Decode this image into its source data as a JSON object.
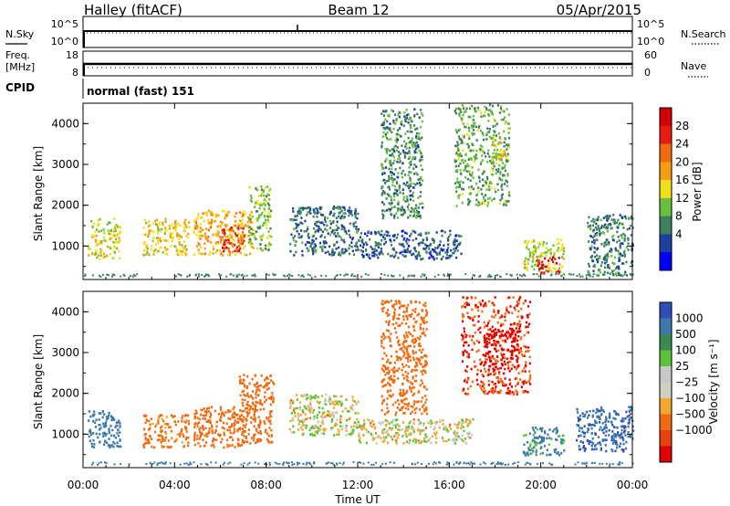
{
  "header": {
    "station": "Halley (fitACF)",
    "beam": "Beam 12",
    "date": "05/Apr/2015"
  },
  "top_panels": {
    "nsky": {
      "label": "N.Sky",
      "ticks": [
        "10^5",
        "10^0"
      ],
      "right_label": "N.Search",
      "right_ticks": [
        "10^5",
        "10^0"
      ]
    },
    "freq": {
      "label_line1": "Freq.",
      "label_line2": "[MHz]",
      "ticks": [
        "18",
        "8"
      ],
      "right_label": "Nave",
      "right_ticks": [
        "60",
        "0"
      ]
    },
    "cpid": {
      "label": "CPID",
      "text": "normal (fast) 151"
    }
  },
  "colors": {
    "power_scale": [
      "#0000ff",
      "#1f3f9f",
      "#3d8060",
      "#6bbf40",
      "#f2dc1e",
      "#f59c12",
      "#f26a10",
      "#e81c10",
      "#d40000"
    ],
    "velocity_scale": [
      "#2f4fb8",
      "#3c78a8",
      "#3a8a50",
      "#5cc23c",
      "#c8c8c8",
      "#cfcfc4",
      "#f2a830",
      "#f06a10",
      "#e84010",
      "#e00000"
    ]
  },
  "chart_data": [
    {
      "type": "heatmap",
      "title": "",
      "xlabel": "Time UT",
      "ylabel": "Slant Range [km]",
      "x_ticks": [
        "00:00",
        "04:00",
        "08:00",
        "12:00",
        "16:00",
        "20:00",
        "00:00"
      ],
      "y_ticks": [
        "1000",
        "2000",
        "3000",
        "4000"
      ],
      "xlim": [
        0,
        24
      ],
      "ylim": [
        180,
        4500
      ],
      "colorbar": {
        "label": "Power [dB]",
        "ticks": [
          "28",
          "24",
          "20",
          "16",
          "12",
          "8",
          "4"
        ],
        "range": [
          0,
          30
        ]
      },
      "patches": [
        {
          "t0": 0.2,
          "t1": 1.6,
          "r0": 700,
          "r1": 1700,
          "v": 14
        },
        {
          "t0": 2.6,
          "t1": 4.6,
          "r0": 800,
          "r1": 1700,
          "v": 16
        },
        {
          "t0": 4.8,
          "t1": 7.4,
          "r0": 800,
          "r1": 1900,
          "v": 18
        },
        {
          "t0": 6.0,
          "t1": 7.0,
          "r0": 900,
          "r1": 1500,
          "v": 26
        },
        {
          "t0": 7.2,
          "t1": 8.2,
          "r0": 900,
          "r1": 2500,
          "v": 12
        },
        {
          "t0": 9.0,
          "t1": 12.0,
          "r0": 800,
          "r1": 2000,
          "v": 6
        },
        {
          "t0": 12.0,
          "t1": 16.5,
          "r0": 700,
          "r1": 1400,
          "v": 5
        },
        {
          "t0": 13.0,
          "t1": 14.8,
          "r0": 1700,
          "r1": 4400,
          "v": 8
        },
        {
          "t0": 16.2,
          "t1": 18.6,
          "r0": 2000,
          "r1": 4500,
          "v": 10
        },
        {
          "t0": 17.8,
          "t1": 18.4,
          "r0": 3000,
          "r1": 3700,
          "v": 15
        },
        {
          "t0": 19.2,
          "t1": 21.0,
          "r0": 400,
          "r1": 1200,
          "v": 14
        },
        {
          "t0": 19.8,
          "t1": 20.8,
          "r0": 350,
          "r1": 750,
          "v": 28
        },
        {
          "t0": 22.0,
          "t1": 24.0,
          "r0": 300,
          "r1": 1800,
          "v": 7
        }
      ]
    },
    {
      "type": "heatmap",
      "title": "",
      "xlabel": "Time UT",
      "ylabel": "Slant Range [km]",
      "x_ticks": [
        "00:00",
        "04:00",
        "08:00",
        "12:00",
        "16:00",
        "20:00",
        "00:00"
      ],
      "y_ticks": [
        "1000",
        "2000",
        "3000",
        "4000"
      ],
      "xlim": [
        0,
        24
      ],
      "ylim": [
        180,
        4500
      ],
      "colorbar": {
        "label": "Velocity [m s⁻¹]",
        "ticks": [
          "1000",
          "500",
          "100",
          "25",
          "−25",
          "−100",
          "−500",
          "−1000"
        ],
        "range": [
          -1000,
          1000
        ]
      },
      "patches": [
        {
          "t0": 0.2,
          "t1": 1.6,
          "r0": 700,
          "r1": 1600,
          "v": 200
        },
        {
          "t0": 2.6,
          "t1": 4.6,
          "r0": 700,
          "r1": 1500,
          "v": -150
        },
        {
          "t0": 4.8,
          "t1": 7.0,
          "r0": 700,
          "r1": 1700,
          "v": -300
        },
        {
          "t0": 6.8,
          "t1": 8.3,
          "r0": 800,
          "r1": 2500,
          "v": -400
        },
        {
          "t0": 9.0,
          "t1": 12.0,
          "r0": 1000,
          "r1": 2000,
          "v": -10
        },
        {
          "t0": 12.0,
          "t1": 17.0,
          "r0": 800,
          "r1": 1400,
          "v": -10
        },
        {
          "t0": 13.0,
          "t1": 15.0,
          "r0": 1500,
          "r1": 4300,
          "v": -300
        },
        {
          "t0": 16.5,
          "t1": 19.5,
          "r0": 2000,
          "r1": 4400,
          "v": -500
        },
        {
          "t0": 17.5,
          "t1": 19.0,
          "r0": 2600,
          "r1": 3600,
          "v": -700
        },
        {
          "t0": 19.2,
          "t1": 21.0,
          "r0": 500,
          "r1": 1200,
          "v": 150
        },
        {
          "t0": 21.5,
          "t1": 24.0,
          "r0": 600,
          "r1": 1700,
          "v": 500
        }
      ]
    }
  ]
}
